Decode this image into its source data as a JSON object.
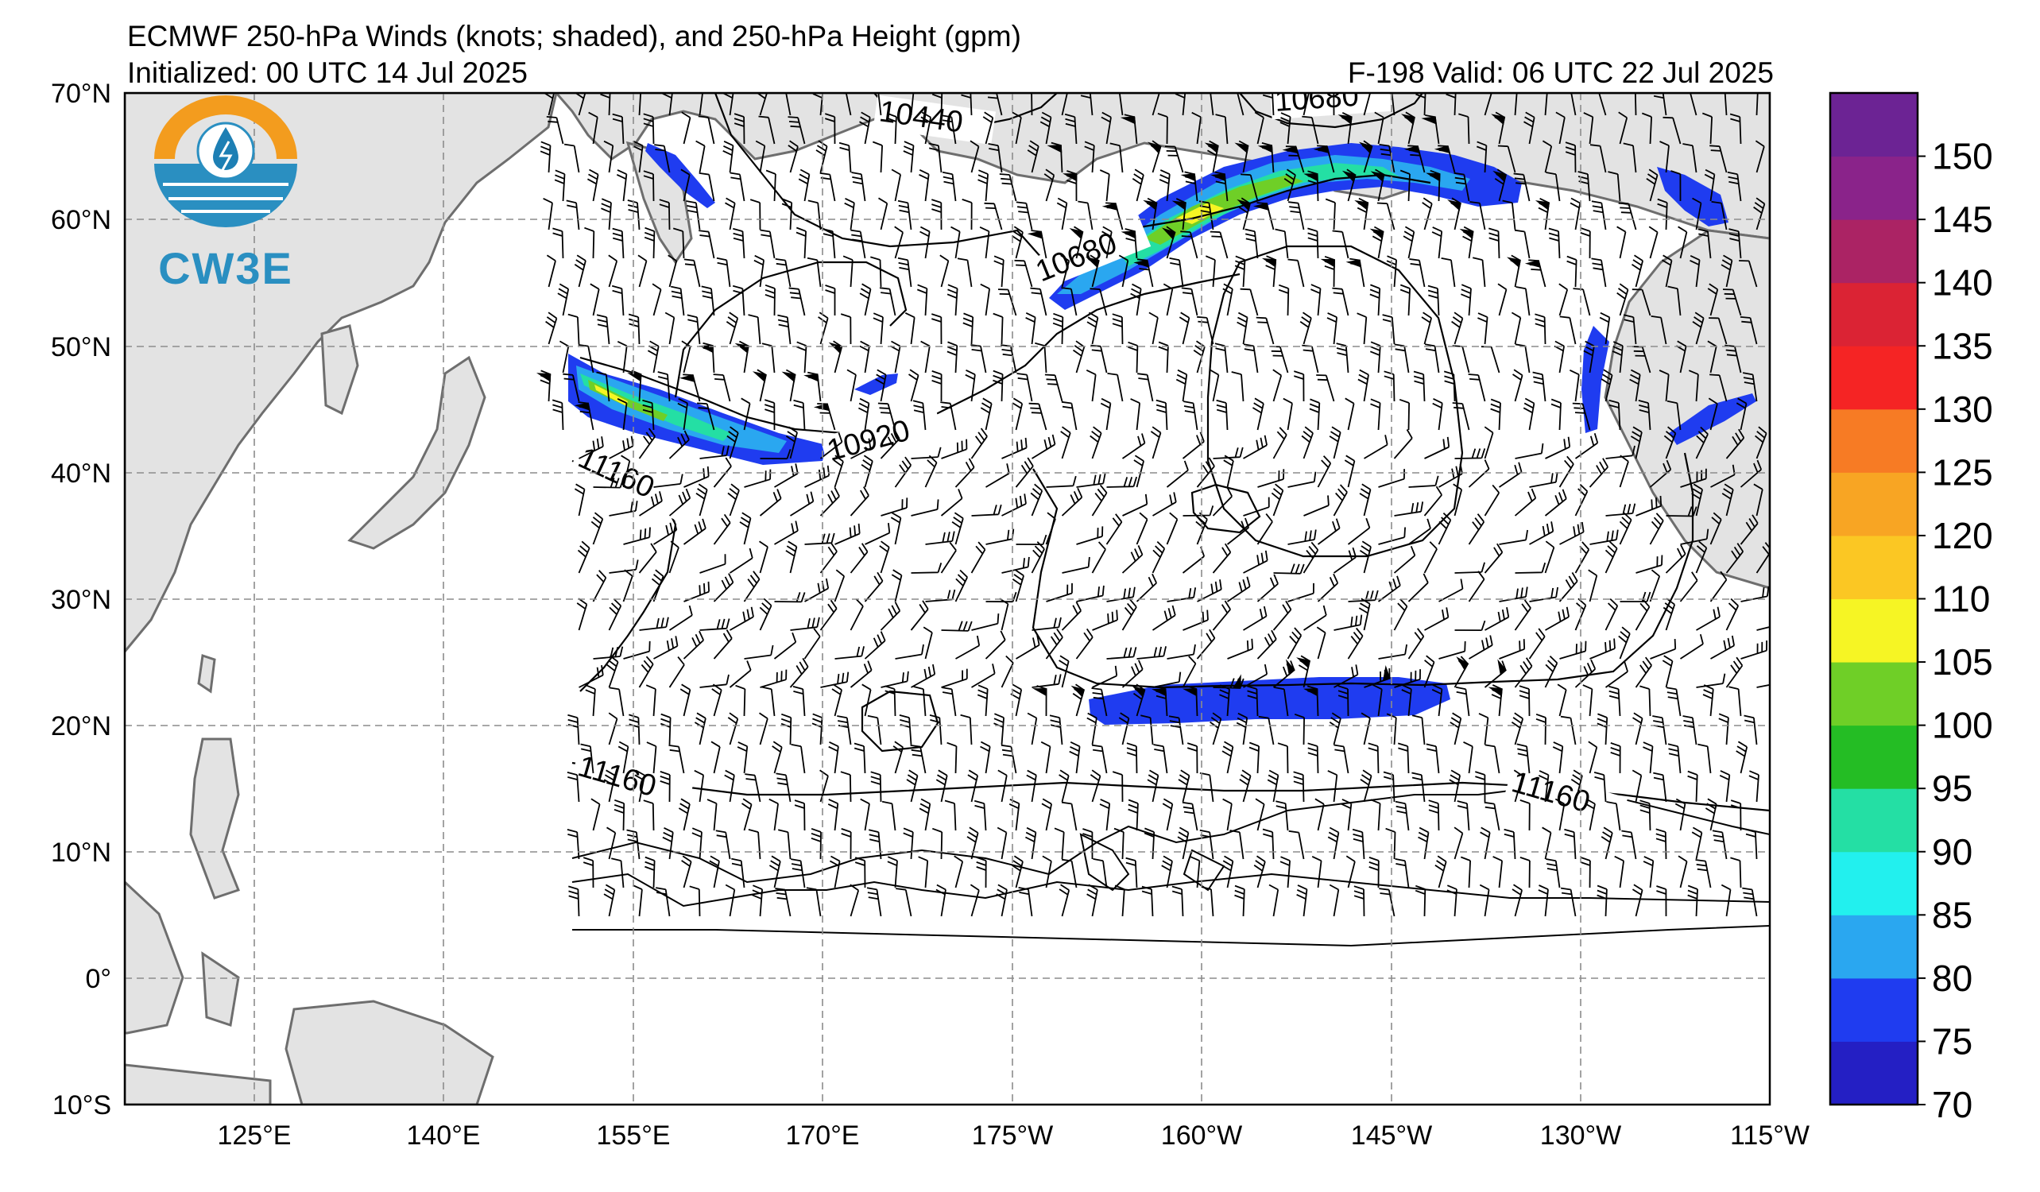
{
  "titles": {
    "main": "ECMWF 250-hPa Winds (knots; shaded), and 250-hPa Height (gpm)",
    "initialized": "Initialized: 00 UTC 14 Jul 2025",
    "valid": "F-198  Valid: 06 UTC 22 Jul 2025"
  },
  "logo": {
    "text": "CW3E",
    "colors": {
      "sun": "#f39c1e",
      "water": "#2a8fc1",
      "drop": "#1d7fb4"
    }
  },
  "map": {
    "lat_labels": [
      "70°N",
      "60°N",
      "50°N",
      "40°N",
      "30°N",
      "20°N",
      "10°N",
      "0°",
      "10°S"
    ],
    "lon_labels": [
      "125°E",
      "140°E",
      "155°E",
      "170°E",
      "175°W",
      "160°W",
      "145°W",
      "130°W",
      "115°W"
    ],
    "land_color": "#e3e3e3",
    "coast_color": "#6e6e6e",
    "grid": "dashed-gray",
    "height_contour_labels": [
      "10440",
      "10680",
      "10680",
      "10920",
      "11160",
      "11160",
      "11160"
    ],
    "jet_max_color": "#e6e62a"
  },
  "colorbar": {
    "ticks": [
      "150",
      "145",
      "140",
      "135",
      "130",
      "125",
      "120",
      "110",
      "105",
      "100",
      "95",
      "90",
      "85",
      "80",
      "75",
      "70"
    ],
    "colors": [
      "#241fc4",
      "#1f3cf0",
      "#2aa7f0",
      "#22f0ee",
      "#24dfa4",
      "#24bd24",
      "#6fcf27",
      "#f6f524",
      "#fbc723",
      "#f8a523",
      "#f77b24",
      "#f52424",
      "#db2334",
      "#ab2364",
      "#8a238a",
      "#6c2394"
    ]
  }
}
